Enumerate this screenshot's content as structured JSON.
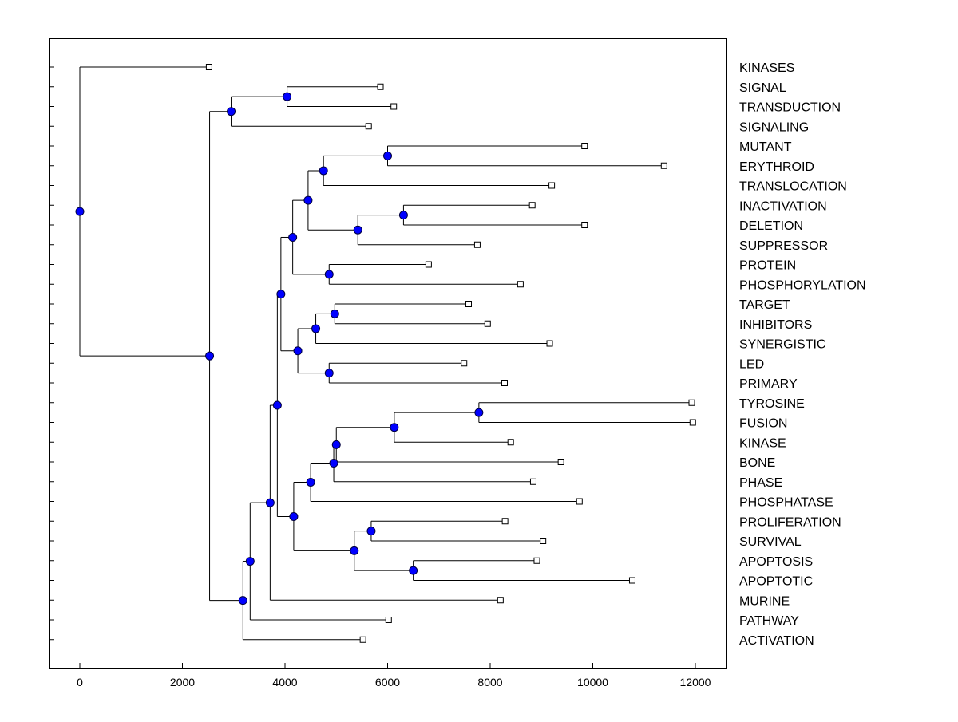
{
  "colors": {
    "background": "#ffffff",
    "line": "#000000",
    "node_fill": "#0000ff",
    "node_stroke": "#000040",
    "leaf_fill": "#ffffff"
  },
  "chart_data": {
    "type": "dendrogram",
    "orientation": "horizontal",
    "xlim": [
      -600,
      12500
    ],
    "x_ticks": [
      0,
      2000,
      4000,
      6000,
      8000,
      10000,
      12000
    ],
    "x_tick_labels": [
      "0",
      "2000",
      "4000",
      "6000",
      "8000",
      "10000",
      "12000"
    ],
    "leaves": [
      {
        "label": "KINASES",
        "x": 2520
      },
      {
        "label": "SIGNAL",
        "x": 5860
      },
      {
        "label": "TRANSDUCTION",
        "x": 6120
      },
      {
        "label": "SIGNALING",
        "x": 5630
      },
      {
        "label": "MUTANT",
        "x": 9840
      },
      {
        "label": "ERYTHROID",
        "x": 11390
      },
      {
        "label": "TRANSLOCATION",
        "x": 9200
      },
      {
        "label": "INACTIVATION",
        "x": 8820
      },
      {
        "label": "DELETION",
        "x": 9840
      },
      {
        "label": "SUPPRESSOR",
        "x": 7750
      },
      {
        "label": "PROTEIN",
        "x": 6800
      },
      {
        "label": "PHOSPHORYLATION",
        "x": 8590
      },
      {
        "label": "TARGET",
        "x": 7580
      },
      {
        "label": "INHIBITORS",
        "x": 7950
      },
      {
        "label": "SYNERGISTIC",
        "x": 9160
      },
      {
        "label": "LED",
        "x": 7490
      },
      {
        "label": "PRIMARY",
        "x": 8280
      },
      {
        "label": "TYROSINE",
        "x": 11930
      },
      {
        "label": "FUSION",
        "x": 11950
      },
      {
        "label": "KINASE",
        "x": 8400
      },
      {
        "label": "BONE",
        "x": 9380
      },
      {
        "label": "PHASE",
        "x": 8840
      },
      {
        "label": "PHOSPHATASE",
        "x": 9740
      },
      {
        "label": "PROLIFERATION",
        "x": 8290
      },
      {
        "label": "SURVIVAL",
        "x": 9030
      },
      {
        "label": "APOPTOSIS",
        "x": 8910
      },
      {
        "label": "APOPTOTIC",
        "x": 10770
      },
      {
        "label": "MURINE",
        "x": 8200
      },
      {
        "label": "PATHWAY",
        "x": 6020
      },
      {
        "label": "ACTIVATION",
        "x": 5520
      }
    ],
    "merges": [
      {
        "id": "n_sig",
        "x": 4040,
        "children": [
          "L1",
          "L2"
        ]
      },
      {
        "id": "n_sig2",
        "x": 2950,
        "children": [
          "n_sig",
          "L3"
        ]
      },
      {
        "id": "n_mut",
        "x": 6000,
        "children": [
          "L4",
          "L5"
        ]
      },
      {
        "id": "n_mut2",
        "x": 4750,
        "children": [
          "n_mut",
          "L6"
        ]
      },
      {
        "id": "n_inact",
        "x": 6310,
        "children": [
          "L7",
          "L8"
        ]
      },
      {
        "id": "n_inact2",
        "x": 5420,
        "children": [
          "n_inact",
          "L9"
        ]
      },
      {
        "id": "n_mid",
        "x": 4450,
        "children": [
          "n_mut2",
          "n_inact2"
        ]
      },
      {
        "id": "n_prot",
        "x": 4860,
        "children": [
          "L10",
          "L11"
        ]
      },
      {
        "id": "n_mid2",
        "x": 4150,
        "children": [
          "n_mid",
          "n_prot"
        ]
      },
      {
        "id": "n_targ",
        "x": 4970,
        "children": [
          "L12",
          "L13"
        ]
      },
      {
        "id": "n_targ2",
        "x": 4600,
        "children": [
          "n_targ",
          "L14"
        ]
      },
      {
        "id": "n_led",
        "x": 4860,
        "children": [
          "L15",
          "L16"
        ]
      },
      {
        "id": "n_targ3",
        "x": 4250,
        "children": [
          "n_targ2",
          "n_led"
        ]
      },
      {
        "id": "n_mid3",
        "x": 3920,
        "children": [
          "n_mid2",
          "n_targ3"
        ]
      },
      {
        "id": "n_tyr",
        "x": 7780,
        "children": [
          "L17",
          "L18"
        ]
      },
      {
        "id": "n_tyr2",
        "x": 6130,
        "children": [
          "n_tyr",
          "L19"
        ]
      },
      {
        "id": "n_tyr3",
        "x": 5000,
        "children": [
          "n_tyr2",
          "L20"
        ]
      },
      {
        "id": "n_tyr4",
        "x": 4950,
        "children": [
          "n_tyr3",
          "L21"
        ]
      },
      {
        "id": "n_tyr5",
        "x": 4500,
        "children": [
          "n_tyr4",
          "L22"
        ]
      },
      {
        "id": "n_surv",
        "x": 5680,
        "children": [
          "L23",
          "L24"
        ]
      },
      {
        "id": "n_apo",
        "x": 6500,
        "children": [
          "L25",
          "L26"
        ]
      },
      {
        "id": "n_surv2",
        "x": 5350,
        "children": [
          "n_surv",
          "n_apo"
        ]
      },
      {
        "id": "n_low",
        "x": 4170,
        "children": [
          "n_tyr5",
          "n_surv2"
        ]
      },
      {
        "id": "n_big",
        "x": 3850,
        "children": [
          "n_mid3",
          "n_low"
        ]
      },
      {
        "id": "n_big2",
        "x": 3710,
        "children": [
          "n_big",
          "L27"
        ]
      },
      {
        "id": "n_big3",
        "x": 3320,
        "children": [
          "n_big2",
          "L28"
        ]
      },
      {
        "id": "n_big4",
        "x": 3180,
        "children": [
          "n_big3",
          "L29"
        ]
      },
      {
        "id": "n_main",
        "x": 2530,
        "children": [
          "n_sig2",
          "n_big4"
        ]
      },
      {
        "id": "n_root",
        "x": 0,
        "children": [
          "L0",
          "n_main"
        ]
      }
    ]
  }
}
